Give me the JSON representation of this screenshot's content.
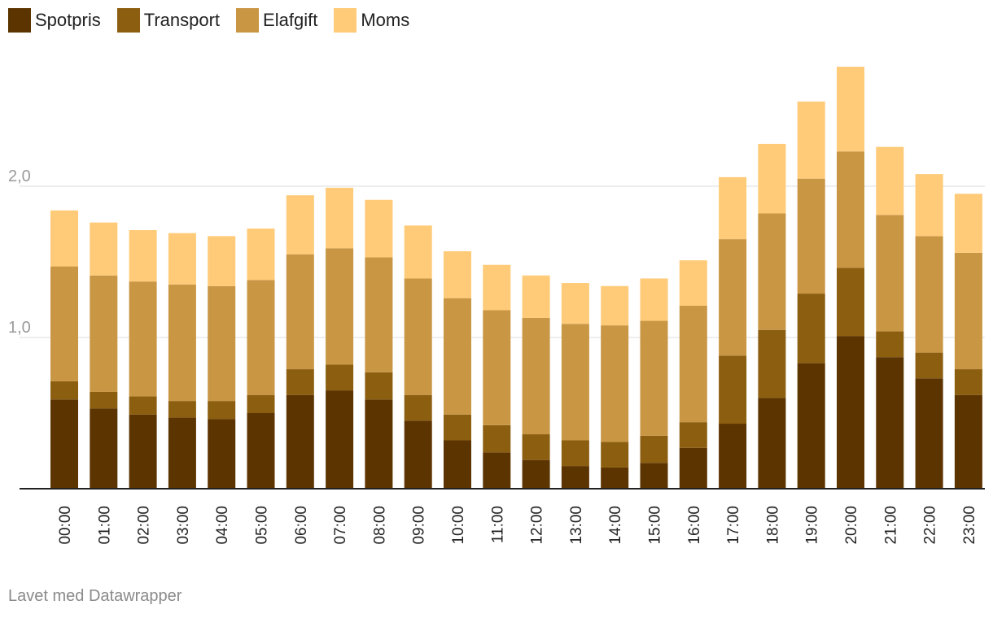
{
  "chart_data": {
    "type": "stacked-bar",
    "title": "",
    "xlabel": "",
    "ylabel": "",
    "ylim": [
      0,
      2.8
    ],
    "yticks": [
      {
        "value": 1.0,
        "label": "1,0"
      },
      {
        "value": 2.0,
        "label": "2,0"
      }
    ],
    "categories": [
      "00:00",
      "01:00",
      "02:00",
      "03:00",
      "04:00",
      "05:00",
      "06:00",
      "07:00",
      "08:00",
      "09:00",
      "10:00",
      "11:00",
      "12:00",
      "13:00",
      "14:00",
      "15:00",
      "16:00",
      "17:00",
      "18:00",
      "19:00",
      "20:00",
      "21:00",
      "22:00",
      "23:00"
    ],
    "series": [
      {
        "name": "Spotpris",
        "color": "#5c3400",
        "values": [
          0.59,
          0.53,
          0.49,
          0.47,
          0.46,
          0.5,
          0.62,
          0.65,
          0.59,
          0.45,
          0.32,
          0.24,
          0.19,
          0.15,
          0.14,
          0.17,
          0.27,
          0.43,
          0.6,
          0.83,
          1.01,
          0.87,
          0.73,
          0.62
        ]
      },
      {
        "name": "Transport",
        "color": "#8c5e10",
        "values": [
          0.12,
          0.11,
          0.12,
          0.11,
          0.12,
          0.12,
          0.17,
          0.17,
          0.18,
          0.17,
          0.17,
          0.18,
          0.17,
          0.17,
          0.17,
          0.18,
          0.17,
          0.45,
          0.45,
          0.46,
          0.45,
          0.17,
          0.17,
          0.17
        ]
      },
      {
        "name": "Elafgift",
        "color": "#c99644",
        "values": [
          0.76,
          0.77,
          0.76,
          0.77,
          0.76,
          0.76,
          0.76,
          0.77,
          0.76,
          0.77,
          0.77,
          0.76,
          0.77,
          0.77,
          0.77,
          0.76,
          0.77,
          0.77,
          0.77,
          0.76,
          0.77,
          0.77,
          0.77,
          0.77
        ]
      },
      {
        "name": "Moms",
        "color": "#ffcb78",
        "values": [
          0.37,
          0.35,
          0.34,
          0.34,
          0.33,
          0.34,
          0.39,
          0.4,
          0.38,
          0.35,
          0.31,
          0.3,
          0.28,
          0.27,
          0.26,
          0.28,
          0.3,
          0.41,
          0.46,
          0.51,
          0.56,
          0.45,
          0.41,
          0.39
        ]
      }
    ]
  },
  "legend": [
    {
      "label": "Spotpris",
      "color": "#5c3400"
    },
    {
      "label": "Transport",
      "color": "#8c5e10"
    },
    {
      "label": "Elafgift",
      "color": "#c99644"
    },
    {
      "label": "Moms",
      "color": "#ffcb78"
    }
  ],
  "footer": {
    "credit": "Lavet med Datawrapper"
  }
}
